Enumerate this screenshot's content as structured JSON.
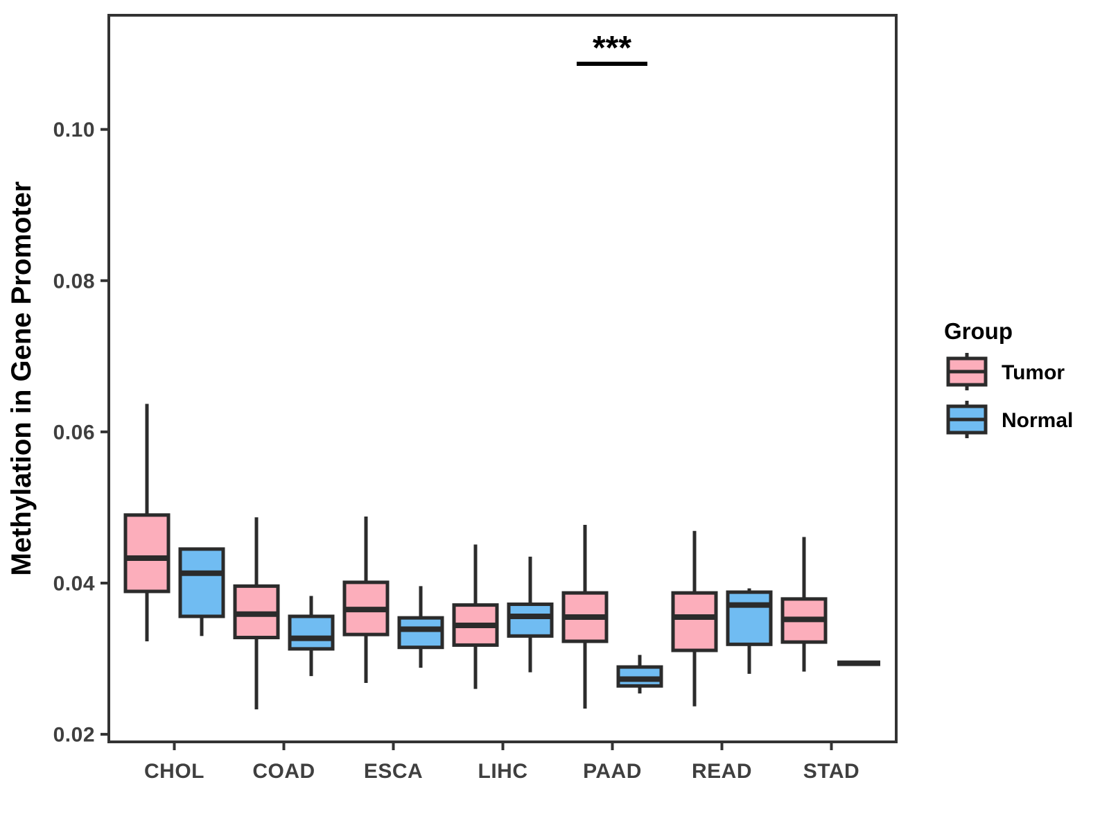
{
  "chart_data": {
    "type": "boxplot",
    "title": "",
    "xlabel": "",
    "ylabel": "Methylation in Gene Promoter",
    "categories": [
      "CHOL",
      "COAD",
      "ESCA",
      "LIHC",
      "PAAD",
      "READ",
      "STAD"
    ],
    "yticks": [
      0.02,
      0.04,
      0.06,
      0.08,
      0.1
    ],
    "ytick_labels": [
      "0.02",
      "0.04",
      "0.06",
      "0.08",
      "0.10"
    ],
    "ylim": [
      0.019,
      0.1151
    ],
    "grid": "off",
    "series": [
      {
        "name": "Tumor",
        "color": "#FCAEBB",
        "boxes": [
          {
            "category": "CHOL",
            "min": 0.0323,
            "q1": 0.0389,
            "median": 0.0433,
            "q3": 0.049,
            "max": 0.0637
          },
          {
            "category": "COAD",
            "min": 0.0233,
            "q1": 0.0328,
            "median": 0.0359,
            "q3": 0.0396,
            "max": 0.0487
          },
          {
            "category": "ESCA",
            "min": 0.0268,
            "q1": 0.0332,
            "median": 0.0365,
            "q3": 0.0401,
            "max": 0.0488
          },
          {
            "category": "LIHC",
            "min": 0.026,
            "q1": 0.0318,
            "median": 0.0344,
            "q3": 0.0371,
            "max": 0.0451
          },
          {
            "category": "PAAD",
            "min": 0.0234,
            "q1": 0.0323,
            "median": 0.0355,
            "q3": 0.0387,
            "max": 0.0477
          },
          {
            "category": "READ",
            "min": 0.0237,
            "q1": 0.0311,
            "median": 0.0355,
            "q3": 0.0387,
            "max": 0.0469
          },
          {
            "category": "STAD",
            "min": 0.0283,
            "q1": 0.0322,
            "median": 0.0352,
            "q3": 0.0379,
            "max": 0.0461
          }
        ]
      },
      {
        "name": "Normal",
        "color": "#70BCF2",
        "boxes": [
          {
            "category": "CHOL",
            "min": 0.033,
            "q1": 0.0356,
            "median": 0.0413,
            "q3": 0.0445,
            "max": 0.0445
          },
          {
            "category": "COAD",
            "min": 0.0277,
            "q1": 0.0313,
            "median": 0.0327,
            "q3": 0.0356,
            "max": 0.0383
          },
          {
            "category": "ESCA",
            "min": 0.0288,
            "q1": 0.0315,
            "median": 0.0339,
            "q3": 0.0354,
            "max": 0.0396
          },
          {
            "category": "LIHC",
            "min": 0.0282,
            "q1": 0.033,
            "median": 0.0356,
            "q3": 0.0372,
            "max": 0.0435
          },
          {
            "category": "PAAD",
            "min": 0.0254,
            "q1": 0.0264,
            "median": 0.0273,
            "q3": 0.0289,
            "max": 0.0305
          },
          {
            "category": "READ",
            "min": 0.028,
            "q1": 0.0319,
            "median": 0.0371,
            "q3": 0.0388,
            "max": 0.0393
          },
          {
            "category": "STAD",
            "min": 0.0294,
            "q1": 0.0294,
            "median": 0.0294,
            "q3": 0.0294,
            "max": 0.0294
          }
        ]
      }
    ],
    "legend": {
      "title": "Group",
      "position": "right",
      "items": [
        {
          "label": "Tumor",
          "color": "#FCAEBB"
        },
        {
          "label": "Normal",
          "color": "#70BCF2"
        }
      ]
    },
    "significance": {
      "label": "***",
      "category": "PAAD",
      "between": [
        "Tumor",
        "Normal"
      ],
      "y": 0.1087
    },
    "colors": {
      "box_border": "#2b2b2b",
      "panel_border": "#333333",
      "tick_text": "#3f3f3f",
      "background": "#ffffff"
    }
  }
}
